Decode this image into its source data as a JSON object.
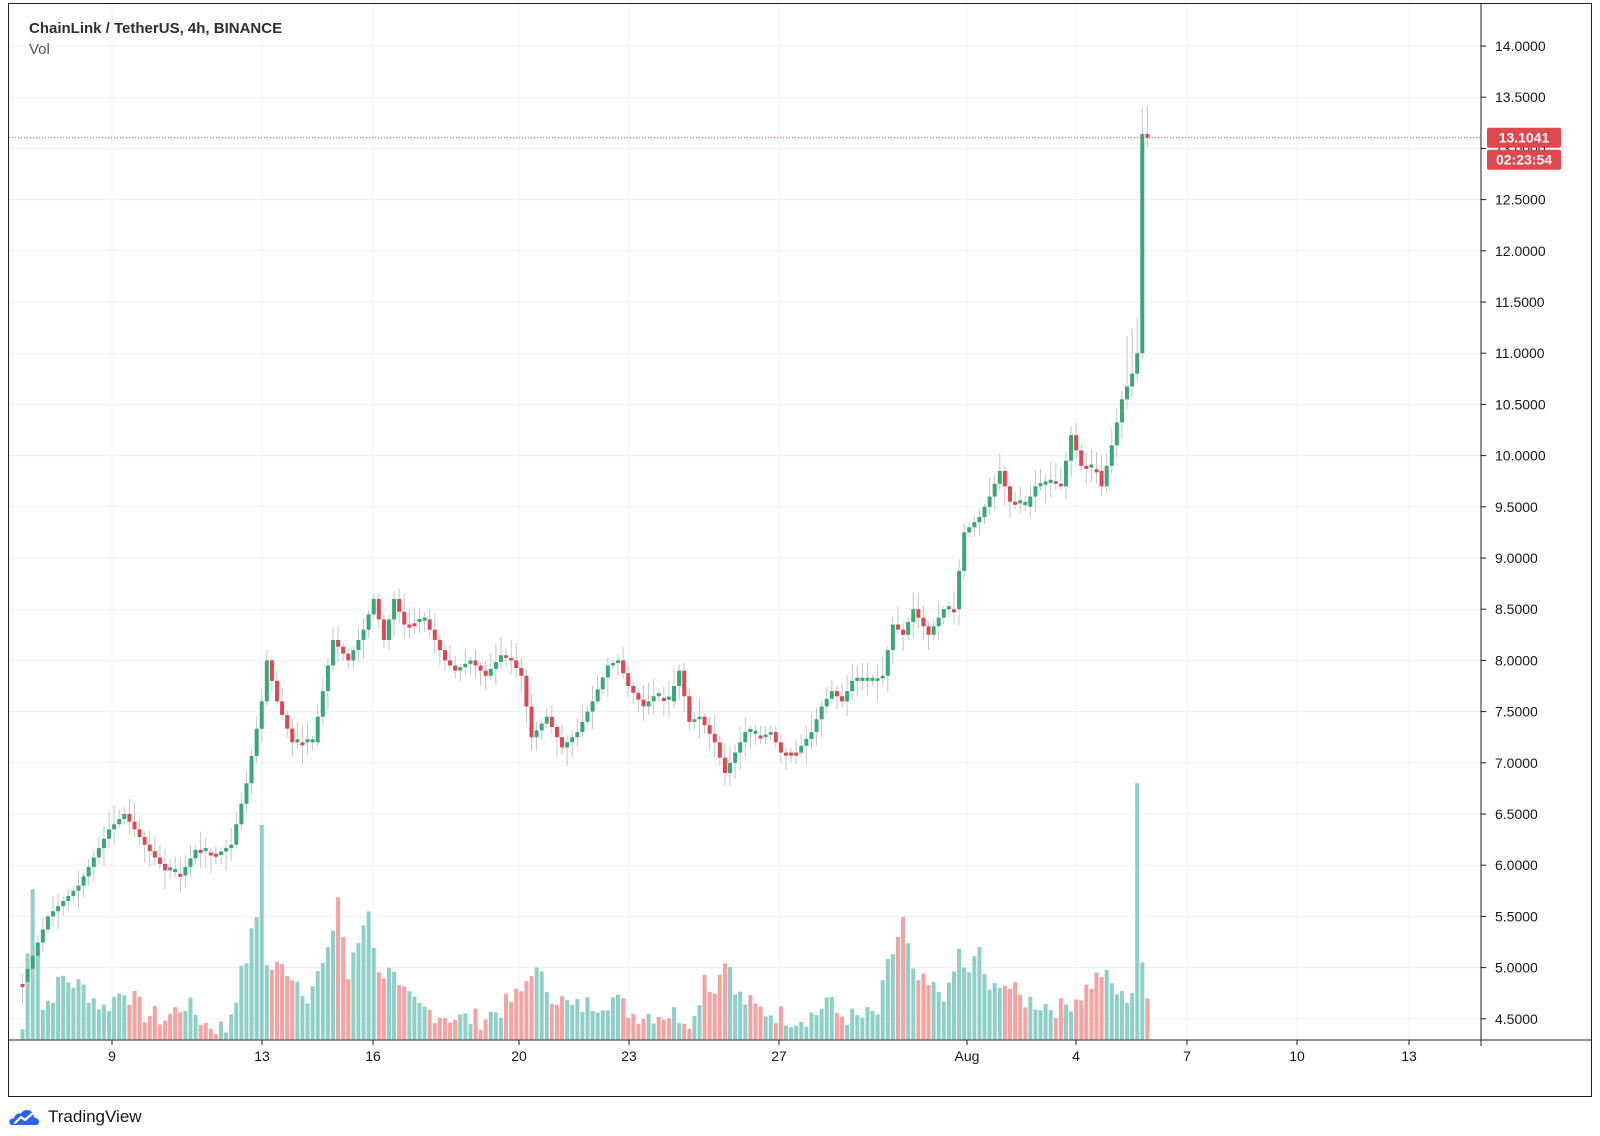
{
  "header": {
    "symbol_title": "ChainLink / TetherUS, 4h, BINANCE",
    "volume_label": "Vol"
  },
  "footer": {
    "brand": "TradingView"
  },
  "colors": {
    "up": "#26a69a",
    "up_candle": "#3aa874",
    "down": "#ef5350",
    "down_candle": "#e0474f",
    "vol_up": "#8fcfc8",
    "vol_down": "#f4a3a1",
    "grid": "#eef0f3",
    "price_line": "#e0474f",
    "logo": "#2962ff"
  },
  "chart_data": {
    "type": "candlestick",
    "title": "ChainLink / TetherUS, 4h, BINANCE",
    "y_axis": {
      "position": "right",
      "range": [
        4.3,
        14.2
      ],
      "ticks": [
        "14.0000",
        "13.5000",
        "13.0000",
        "12.5000",
        "12.0000",
        "11.5000",
        "11.0000",
        "10.5000",
        "10.0000",
        "9.5000",
        "9.0000",
        "8.5000",
        "8.0000",
        "7.5000",
        "7.0000",
        "6.5000",
        "6.0000",
        "5.5000",
        "5.0000",
        "4.5000"
      ]
    },
    "x_axis": {
      "tick_labels": [
        "9",
        "13",
        "16",
        "20",
        "23",
        "27",
        "Aug",
        "4",
        "7",
        "10",
        "13"
      ]
    },
    "grid": true,
    "current_price": {
      "value": "13.1041",
      "countdown": "02:23:54"
    },
    "volume_scale": {
      "baseline_price": 4.3,
      "max_volume_price": 6.8
    },
    "anchors": [
      [
        0,
        4.86
      ],
      [
        5,
        5.5
      ],
      [
        11,
        5.8
      ],
      [
        17,
        6.35
      ],
      [
        20,
        6.5
      ],
      [
        24,
        6.2
      ],
      [
        28,
        5.95
      ],
      [
        31,
        5.9
      ],
      [
        34,
        6.15
      ],
      [
        38,
        6.1
      ],
      [
        41,
        6.2
      ],
      [
        44,
        6.8
      ],
      [
        47,
        7.6
      ],
      [
        48,
        8.0
      ],
      [
        50,
        7.6
      ],
      [
        53,
        7.2
      ],
      [
        57,
        7.2
      ],
      [
        61,
        8.2
      ],
      [
        64,
        8.0
      ],
      [
        67,
        8.3
      ],
      [
        69,
        8.6
      ],
      [
        71,
        8.2
      ],
      [
        73,
        8.6
      ],
      [
        75,
        8.35
      ],
      [
        79,
        8.4
      ],
      [
        83,
        8.0
      ],
      [
        85,
        7.9
      ],
      [
        88,
        8.0
      ],
      [
        91,
        7.85
      ],
      [
        94,
        8.05
      ],
      [
        96,
        8.0
      ],
      [
        98,
        7.85
      ],
      [
        100,
        7.25
      ],
      [
        103,
        7.45
      ],
      [
        106,
        7.15
      ],
      [
        109,
        7.3
      ],
      [
        112,
        7.6
      ],
      [
        115,
        7.95
      ],
      [
        117,
        8.0
      ],
      [
        119,
        7.75
      ],
      [
        122,
        7.55
      ],
      [
        124,
        7.65
      ],
      [
        127,
        7.6
      ],
      [
        129,
        7.9
      ],
      [
        131,
        7.4
      ],
      [
        133,
        7.45
      ],
      [
        136,
        7.2
      ],
      [
        138,
        6.9
      ],
      [
        140,
        7.1
      ],
      [
        142,
        7.3
      ],
      [
        145,
        7.25
      ],
      [
        147,
        7.3
      ],
      [
        149,
        7.1
      ],
      [
        152,
        7.1
      ],
      [
        155,
        7.3
      ],
      [
        157,
        7.55
      ],
      [
        159,
        7.7
      ],
      [
        161,
        7.6
      ],
      [
        163,
        7.8
      ],
      [
        167,
        7.8
      ],
      [
        169,
        7.85
      ],
      [
        171,
        8.35
      ],
      [
        173,
        8.25
      ],
      [
        175,
        8.5
      ],
      [
        178,
        8.25
      ],
      [
        181,
        8.5
      ],
      [
        183,
        8.5
      ],
      [
        185,
        9.25
      ],
      [
        188,
        9.4
      ],
      [
        190,
        9.6
      ],
      [
        192,
        9.85
      ],
      [
        194,
        9.55
      ],
      [
        197,
        9.5
      ],
      [
        199,
        9.7
      ],
      [
        202,
        9.75
      ],
      [
        204,
        9.7
      ],
      [
        206,
        10.2
      ],
      [
        208,
        9.9
      ],
      [
        211,
        9.85
      ],
      [
        212,
        9.7
      ],
      [
        214,
        10.1
      ],
      [
        216,
        10.55
      ],
      [
        218,
        10.8
      ],
      [
        219,
        11.0
      ],
      [
        220,
        13.14
      ],
      [
        221,
        13.1041
      ]
    ],
    "volume_anchors": [
      [
        0,
        4.4
      ],
      [
        2,
        5.85
      ],
      [
        4,
        4.6
      ],
      [
        8,
        4.9
      ],
      [
        12,
        4.8
      ],
      [
        16,
        4.6
      ],
      [
        20,
        4.8
      ],
      [
        24,
        4.55
      ],
      [
        28,
        4.5
      ],
      [
        32,
        4.65
      ],
      [
        36,
        4.45
      ],
      [
        40,
        4.4
      ],
      [
        44,
        5.1
      ],
      [
        46,
        5.5
      ],
      [
        47,
        6.45
      ],
      [
        48,
        5.0
      ],
      [
        52,
        5.0
      ],
      [
        56,
        4.75
      ],
      [
        60,
        5.1
      ],
      [
        62,
        5.7
      ],
      [
        64,
        4.9
      ],
      [
        68,
        5.6
      ],
      [
        70,
        4.9
      ],
      [
        72,
        5.05
      ],
      [
        74,
        4.75
      ],
      [
        78,
        4.6
      ],
      [
        82,
        4.55
      ],
      [
        86,
        4.5
      ],
      [
        90,
        4.5
      ],
      [
        94,
        4.6
      ],
      [
        98,
        4.75
      ],
      [
        100,
        5.0
      ],
      [
        104,
        4.75
      ],
      [
        108,
        4.6
      ],
      [
        112,
        4.65
      ],
      [
        116,
        4.7
      ],
      [
        120,
        4.55
      ],
      [
        124,
        4.55
      ],
      [
        128,
        4.55
      ],
      [
        132,
        4.5
      ],
      [
        134,
        4.95
      ],
      [
        136,
        4.75
      ],
      [
        138,
        5.15
      ],
      [
        140,
        4.75
      ],
      [
        144,
        4.6
      ],
      [
        148,
        4.55
      ],
      [
        152,
        4.5
      ],
      [
        156,
        4.55
      ],
      [
        158,
        4.7
      ],
      [
        160,
        4.55
      ],
      [
        164,
        4.5
      ],
      [
        168,
        4.55
      ],
      [
        170,
        5.0
      ],
      [
        172,
        5.3
      ],
      [
        173,
        5.45
      ],
      [
        175,
        4.9
      ],
      [
        178,
        4.8
      ],
      [
        182,
        4.75
      ],
      [
        184,
        5.15
      ],
      [
        186,
        4.9
      ],
      [
        188,
        5.2
      ],
      [
        190,
        4.7
      ],
      [
        192,
        4.9
      ],
      [
        196,
        4.7
      ],
      [
        200,
        4.65
      ],
      [
        204,
        4.6
      ],
      [
        208,
        4.75
      ],
      [
        212,
        4.95
      ],
      [
        216,
        4.7
      ],
      [
        218,
        4.75
      ],
      [
        219,
        6.8
      ],
      [
        220,
        5.05
      ],
      [
        221,
        4.7
      ]
    ]
  }
}
